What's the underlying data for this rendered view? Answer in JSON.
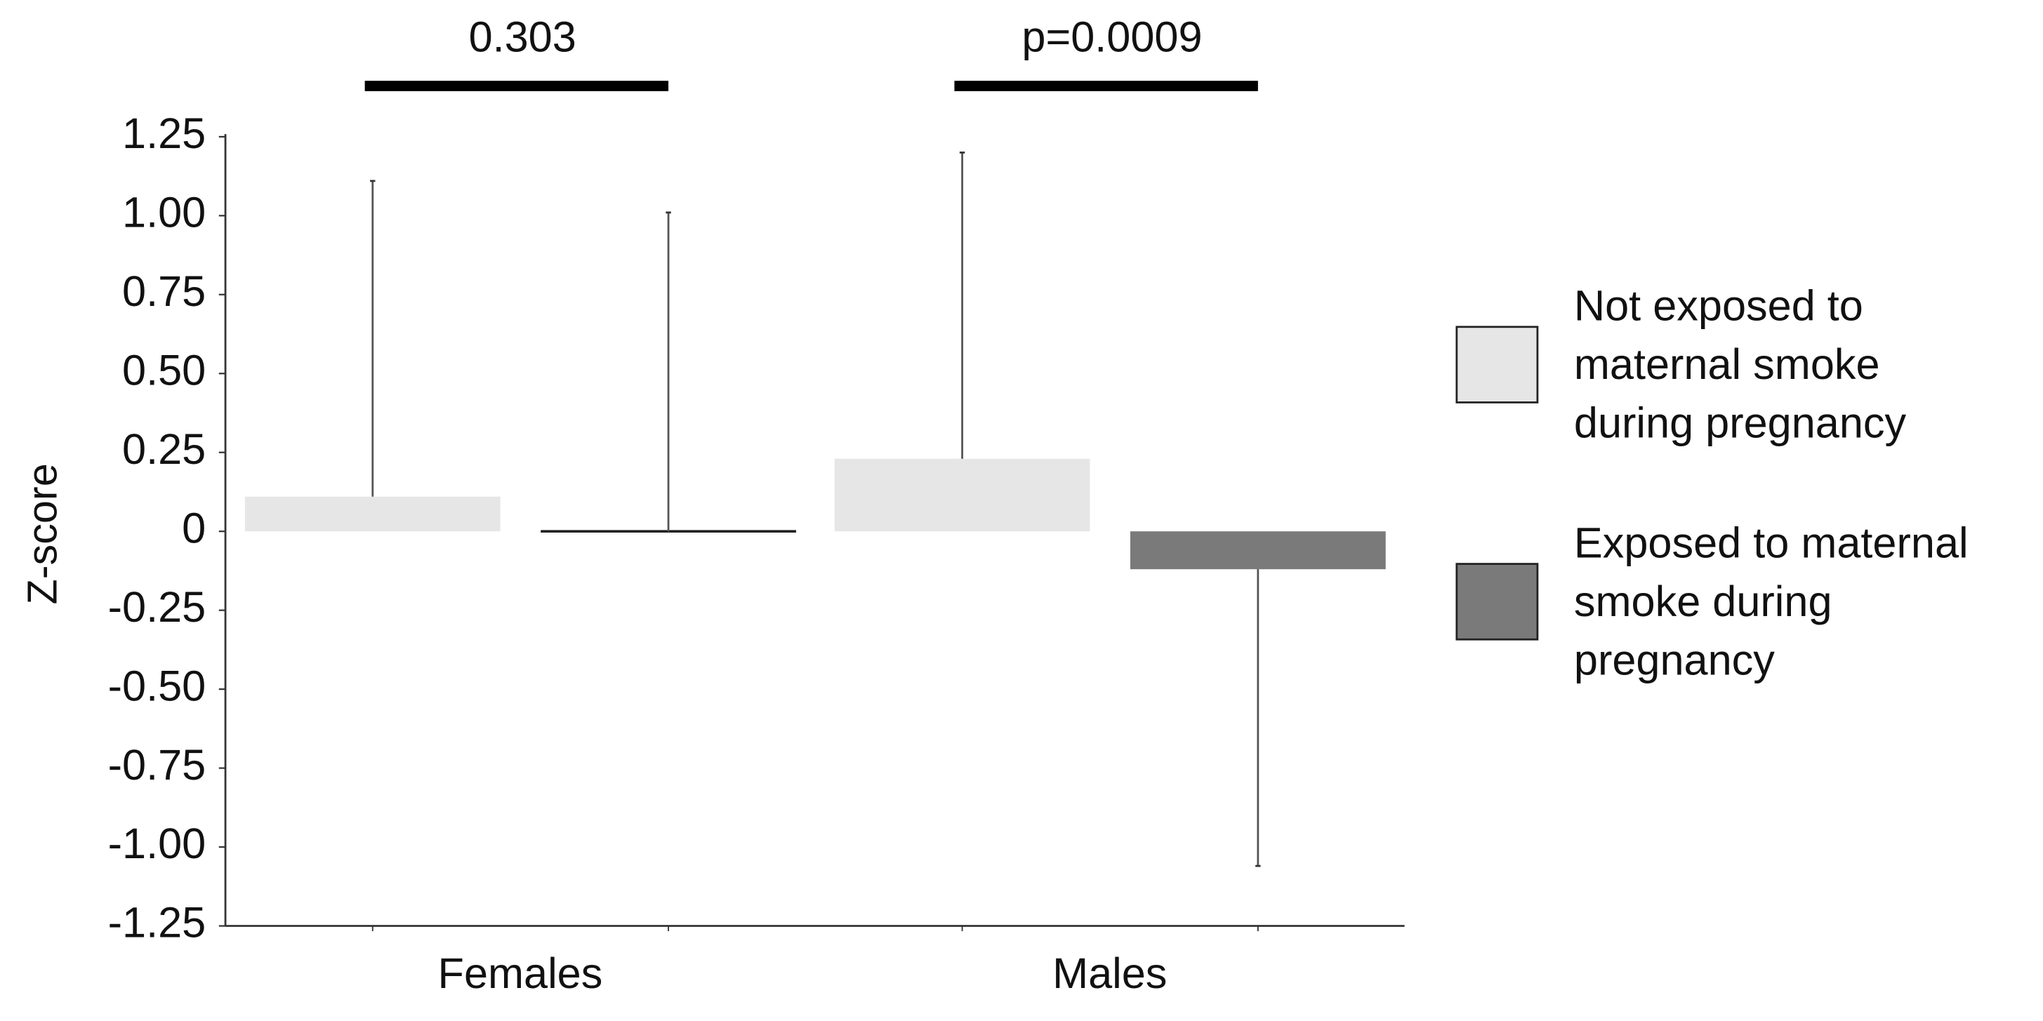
{
  "chart_data": {
    "type": "bar",
    "y_label": "Z-score",
    "categories": [
      "Females",
      "Males"
    ],
    "annotations": [
      "0.303",
      "p=0.0009"
    ],
    "series": [
      {
        "name": "Not exposed to\nmaternal smoke\nduring pregnancy",
        "color": "#e6e6e6",
        "values": [
          0.11,
          0.23
        ],
        "errors": [
          1.0,
          0.97
        ]
      },
      {
        "name": "Exposed to maternal\nsmoke during\npregnancy",
        "color": "#7a7a7a",
        "values": [
          0.0,
          -0.12
        ],
        "errors": [
          1.01,
          0.94
        ]
      }
    ],
    "ylim": [
      -1.25,
      1.25
    ],
    "yticks": [
      1.25,
      {
        "value": 1,
        "label": "1.00"
      },
      0.75,
      {
        "value": 0.5,
        "label": "0.50"
      },
      0.25,
      0,
      -0.25,
      {
        "value": -0.5,
        "label": "-0.50"
      },
      -0.75,
      {
        "value": -1,
        "label": "-1.00"
      },
      -1.25
    ],
    "grid": false
  }
}
